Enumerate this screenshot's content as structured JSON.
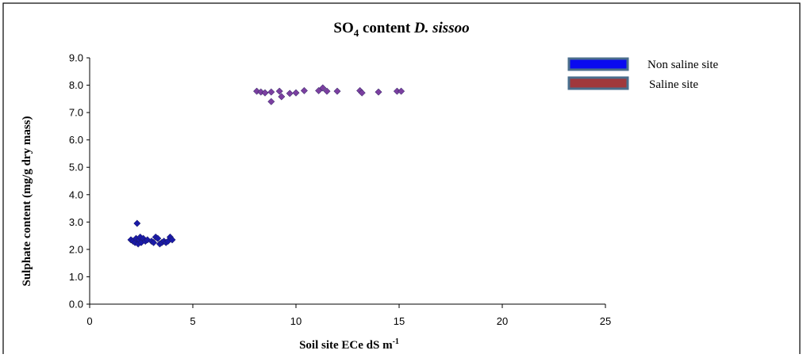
{
  "colors": {
    "non_saline_marker": "#1a1aa8",
    "saline_marker": "#7b3fa0",
    "legend_non_saline_fill": "#0a0af0",
    "legend_saline_fill": "#a0383c",
    "legend_border": "#4a6e8c"
  },
  "chart_data": {
    "type": "scatter",
    "title_main": "SO",
    "title_sub": "4",
    "title_rest": " content ",
    "title_italic": "D. sissoo",
    "xlabel_main": "Soil site ECe dS m",
    "xlabel_sup": "-1",
    "ylabel": "Sulphate content (mg/g dry mass)",
    "xlim": [
      0,
      25
    ],
    "ylim": [
      0,
      9
    ],
    "x_ticks": [
      "0",
      "5",
      "10",
      "15",
      "20",
      "25"
    ],
    "y_ticks": [
      "0.0",
      "1.0",
      "2.0",
      "3.0",
      "4.0",
      "5.0",
      "6.0",
      "7.0",
      "8.0",
      "9.0"
    ],
    "grid": false,
    "legend_position": "top-right",
    "series": [
      {
        "name": "Non saline site",
        "color": "#1a1aa8",
        "points": [
          [
            2.0,
            2.35
          ],
          [
            2.1,
            2.3
          ],
          [
            2.2,
            2.25
          ],
          [
            2.25,
            2.4
          ],
          [
            2.3,
            2.95
          ],
          [
            2.35,
            2.2
          ],
          [
            2.4,
            2.35
          ],
          [
            2.45,
            2.45
          ],
          [
            2.5,
            2.25
          ],
          [
            2.6,
            2.4
          ],
          [
            2.7,
            2.3
          ],
          [
            2.8,
            2.35
          ],
          [
            3.0,
            2.3
          ],
          [
            3.1,
            2.25
          ],
          [
            3.2,
            2.45
          ],
          [
            3.3,
            2.4
          ],
          [
            3.4,
            2.2
          ],
          [
            3.5,
            2.25
          ],
          [
            3.6,
            2.3
          ],
          [
            3.7,
            2.25
          ],
          [
            3.8,
            2.3
          ],
          [
            3.9,
            2.45
          ],
          [
            4.0,
            2.35
          ]
        ]
      },
      {
        "name": "Saline site",
        "color": "#7b3fa0",
        "points": [
          [
            8.1,
            7.78
          ],
          [
            8.3,
            7.75
          ],
          [
            8.5,
            7.72
          ],
          [
            8.8,
            7.4
          ],
          [
            8.8,
            7.75
          ],
          [
            9.2,
            7.78
          ],
          [
            9.3,
            7.58
          ],
          [
            9.7,
            7.7
          ],
          [
            10.0,
            7.72
          ],
          [
            10.4,
            7.8
          ],
          [
            11.1,
            7.8
          ],
          [
            11.3,
            7.9
          ],
          [
            11.5,
            7.78
          ],
          [
            12.0,
            7.78
          ],
          [
            13.1,
            7.8
          ],
          [
            13.2,
            7.72
          ],
          [
            14.0,
            7.75
          ],
          [
            14.9,
            7.78
          ],
          [
            15.1,
            7.78
          ]
        ]
      }
    ]
  }
}
